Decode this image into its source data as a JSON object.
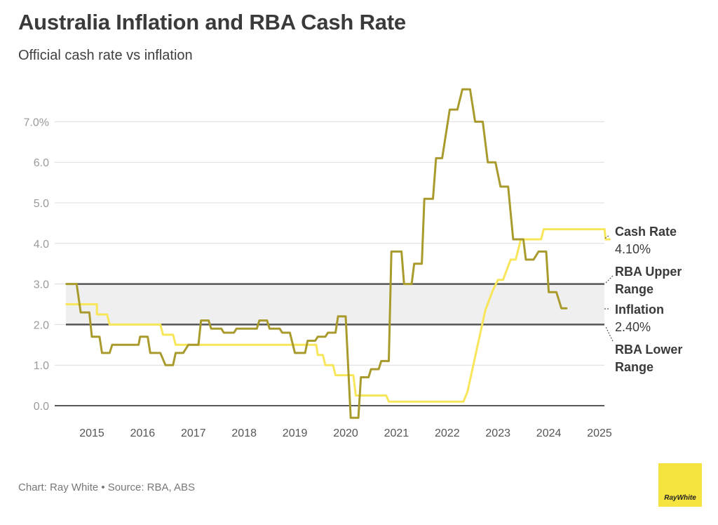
{
  "header": {
    "title": "Australia Inflation and RBA Cash Rate",
    "subtitle": "Official cash rate vs inflation"
  },
  "footer": {
    "credit": "Chart: Ray White • Source: RBA, ABS",
    "logo_text": "RayWhite"
  },
  "colors": {
    "cash_rate": "#f7e55a",
    "inflation": "#a89a2c",
    "range_band": "#efefef",
    "range_lines": "#555555",
    "logo": "#f5e33f"
  },
  "chart_data": {
    "type": "line",
    "title": "Australia Inflation and RBA Cash Rate",
    "subtitle": "Official cash rate vs inflation",
    "y_ticks": [
      "0.0",
      "1.0",
      "2.0",
      "3.0",
      "4.0",
      "5.0",
      "6.0",
      "7.0%"
    ],
    "x_ticks": [
      "2015",
      "2016",
      "2017",
      "2018",
      "2019",
      "2020",
      "2021",
      "2022",
      "2023",
      "2024",
      "2025"
    ],
    "ylim": [
      0,
      7.8
    ],
    "xlim": [
      2014.3,
      2025.3
    ],
    "grid": true,
    "reference_band": {
      "lower": 2.0,
      "upper": 3.0
    },
    "series": [
      {
        "name": "Cash Rate",
        "value_label": "4.10%",
        "color": "#f7e55a",
        "points": [
          [
            2014.5,
            2.5
          ],
          [
            2015.1,
            2.5
          ],
          [
            2015.1,
            2.25
          ],
          [
            2015.3,
            2.25
          ],
          [
            2015.35,
            2.0
          ],
          [
            2016.35,
            2.0
          ],
          [
            2016.4,
            1.75
          ],
          [
            2016.6,
            1.75
          ],
          [
            2016.65,
            1.5
          ],
          [
            2019.42,
            1.5
          ],
          [
            2019.45,
            1.25
          ],
          [
            2019.55,
            1.25
          ],
          [
            2019.6,
            1.0
          ],
          [
            2019.75,
            1.0
          ],
          [
            2019.8,
            0.75
          ],
          [
            2020.15,
            0.75
          ],
          [
            2020.2,
            0.25
          ],
          [
            2020.8,
            0.25
          ],
          [
            2020.85,
            0.1
          ],
          [
            2022.32,
            0.1
          ],
          [
            2022.4,
            0.35
          ],
          [
            2022.75,
            2.35
          ],
          [
            2022.9,
            2.85
          ],
          [
            2023.0,
            3.1
          ],
          [
            2023.1,
            3.1
          ],
          [
            2023.25,
            3.6
          ],
          [
            2023.35,
            3.6
          ],
          [
            2023.45,
            4.1
          ],
          [
            2023.85,
            4.1
          ],
          [
            2023.9,
            4.35
          ],
          [
            2025.1,
            4.35
          ],
          [
            2025.12,
            4.1
          ],
          [
            2025.2,
            4.1
          ]
        ]
      },
      {
        "name": "Inflation",
        "value_label": "2.40%",
        "color": "#a89a2c",
        "points": [
          [
            2014.5,
            3.0
          ],
          [
            2014.7,
            3.0
          ],
          [
            2014.78,
            2.3
          ],
          [
            2014.95,
            2.3
          ],
          [
            2015.0,
            1.7
          ],
          [
            2015.15,
            1.7
          ],
          [
            2015.2,
            1.3
          ],
          [
            2015.35,
            1.3
          ],
          [
            2015.4,
            1.5
          ],
          [
            2015.8,
            1.5
          ],
          [
            2015.92,
            1.5
          ],
          [
            2015.95,
            1.7
          ],
          [
            2016.1,
            1.7
          ],
          [
            2016.15,
            1.3
          ],
          [
            2016.35,
            1.3
          ],
          [
            2016.45,
            1.0
          ],
          [
            2016.6,
            1.0
          ],
          [
            2016.65,
            1.3
          ],
          [
            2016.8,
            1.3
          ],
          [
            2016.9,
            1.5
          ],
          [
            2017.1,
            1.5
          ],
          [
            2017.15,
            2.1
          ],
          [
            2017.3,
            2.1
          ],
          [
            2017.35,
            1.9
          ],
          [
            2017.55,
            1.9
          ],
          [
            2017.6,
            1.8
          ],
          [
            2017.8,
            1.8
          ],
          [
            2017.85,
            1.9
          ],
          [
            2018.25,
            1.9
          ],
          [
            2018.3,
            2.1
          ],
          [
            2018.45,
            2.1
          ],
          [
            2018.5,
            1.9
          ],
          [
            2018.7,
            1.9
          ],
          [
            2018.75,
            1.8
          ],
          [
            2018.9,
            1.8
          ],
          [
            2019.0,
            1.3
          ],
          [
            2019.2,
            1.3
          ],
          [
            2019.25,
            1.6
          ],
          [
            2019.4,
            1.6
          ],
          [
            2019.45,
            1.7
          ],
          [
            2019.6,
            1.7
          ],
          [
            2019.65,
            1.8
          ],
          [
            2019.8,
            1.8
          ],
          [
            2019.85,
            2.2
          ],
          [
            2020.0,
            2.2
          ],
          [
            2020.1,
            -0.3
          ],
          [
            2020.25,
            -0.3
          ],
          [
            2020.3,
            0.7
          ],
          [
            2020.45,
            0.7
          ],
          [
            2020.5,
            0.9
          ],
          [
            2020.65,
            0.9
          ],
          [
            2020.7,
            1.1
          ],
          [
            2020.85,
            1.1
          ],
          [
            2020.9,
            3.8
          ],
          [
            2021.1,
            3.8
          ],
          [
            2021.15,
            3.0
          ],
          [
            2021.3,
            3.0
          ],
          [
            2021.35,
            3.5
          ],
          [
            2021.5,
            3.5
          ],
          [
            2021.55,
            5.1
          ],
          [
            2021.72,
            5.1
          ],
          [
            2021.78,
            6.1
          ],
          [
            2021.9,
            6.1
          ],
          [
            2022.05,
            7.3
          ],
          [
            2022.2,
            7.3
          ],
          [
            2022.3,
            7.8
          ],
          [
            2022.45,
            7.8
          ],
          [
            2022.55,
            7.0
          ],
          [
            2022.7,
            7.0
          ],
          [
            2022.8,
            6.0
          ],
          [
            2022.95,
            6.0
          ],
          [
            2023.05,
            5.4
          ],
          [
            2023.2,
            5.4
          ],
          [
            2023.3,
            4.1
          ],
          [
            2023.5,
            4.1
          ],
          [
            2023.55,
            3.6
          ],
          [
            2023.7,
            3.6
          ],
          [
            2023.8,
            3.8
          ],
          [
            2023.95,
            3.8
          ],
          [
            2024.0,
            2.8
          ],
          [
            2024.15,
            2.8
          ],
          [
            2024.25,
            2.4
          ],
          [
            2024.35,
            2.4
          ]
        ]
      }
    ],
    "annotations": [
      {
        "text": [
          "Cash Rate",
          "4.10%"
        ],
        "y": 4.1
      },
      {
        "text": [
          "RBA Upper",
          "Range"
        ],
        "y": 3.0
      },
      {
        "text": [
          "Inflation",
          "2.40%"
        ],
        "y": 2.4
      },
      {
        "text": [
          "RBA Lower",
          "Range"
        ],
        "y": 2.0
      }
    ]
  }
}
